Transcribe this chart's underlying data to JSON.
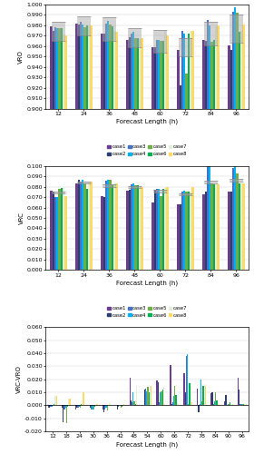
{
  "forecast_lengths_top": [
    12,
    24,
    36,
    48,
    60,
    72,
    84,
    96
  ],
  "forecast_lengths_bottom": [
    12,
    18,
    24,
    30,
    36,
    42,
    48,
    54,
    60,
    66,
    72,
    78,
    84,
    90,
    96
  ],
  "case_colors": [
    "#6a3d8f",
    "#2c3e6b",
    "#4472c4",
    "#00b0f0",
    "#70ad47",
    "#00b050",
    "#e2efda",
    "#ffd966"
  ],
  "case_labels": [
    "case1",
    "case2",
    "case3",
    "case4",
    "case5",
    "case6",
    "case7",
    "case8"
  ],
  "vro_data": [
    [
      0.979,
      0.982,
      0.972,
      0.966,
      0.959,
      0.956,
      0.966,
      0.961
    ],
    [
      0.975,
      0.981,
      0.972,
      0.969,
      0.959,
      0.922,
      0.965,
      0.956
    ],
    [
      0.978,
      0.983,
      0.982,
      0.972,
      0.966,
      0.975,
      0.985,
      0.993
    ],
    [
      0.977,
      0.981,
      0.984,
      0.974,
      0.966,
      0.972,
      0.98,
      0.997
    ],
    [
      0.977,
      0.978,
      0.981,
      0.968,
      0.965,
      0.934,
      0.964,
      0.992
    ],
    [
      0.977,
      0.98,
      0.979,
      0.968,
      0.965,
      0.972,
      0.966,
      0.974
    ],
    [
      0.971,
      0.979,
      0.975,
      0.967,
      0.975,
      0.975,
      0.979,
      0.975
    ],
    [
      0.97,
      0.98,
      0.974,
      0.968,
      0.97,
      0.975,
      0.98,
      0.981
    ]
  ],
  "vro_ci_lo": [
    0.01,
    0.01,
    0.012,
    0.01,
    0.012,
    0.01,
    0.012,
    0.015
  ],
  "vro_ci_hi": [
    0.008,
    0.008,
    0.01,
    0.008,
    0.01,
    0.008,
    0.01,
    0.012
  ],
  "vrc_data": [
    [
      0.076,
      0.083,
      0.071,
      0.076,
      0.065,
      0.063,
      0.073,
      0.075
    ],
    [
      0.075,
      0.087,
      0.07,
      0.077,
      0.077,
      0.063,
      0.075,
      0.075
    ],
    [
      0.07,
      0.085,
      0.086,
      0.082,
      0.078,
      0.075,
      0.1,
      0.098
    ],
    [
      0.07,
      0.087,
      0.087,
      0.083,
      0.078,
      0.076,
      0.1,
      0.1
    ],
    [
      0.078,
      0.083,
      0.087,
      0.081,
      0.071,
      0.075,
      0.083,
      0.093
    ],
    [
      0.079,
      0.078,
      0.082,
      0.081,
      0.078,
      0.075,
      0.082,
      0.083
    ],
    [
      0.079,
      0.083,
      0.083,
      0.08,
      0.079,
      0.075,
      0.082,
      0.083
    ],
    [
      0.071,
      0.085,
      0.083,
      0.08,
      0.08,
      0.08,
      0.082,
      0.083
    ]
  ],
  "vrc_ci_lo": [
    0.01,
    0.01,
    0.012,
    0.01,
    0.012,
    0.01,
    0.012,
    0.015
  ],
  "vrc_ci_hi": [
    0.008,
    0.008,
    0.01,
    0.008,
    0.01,
    0.008,
    0.01,
    0.012
  ],
  "diff_data": [
    [
      -0.002,
      -0.002,
      -0.003,
      0.0,
      -0.003,
      0.0,
      0.021,
      0.0,
      0.019,
      0.031,
      0.025,
      0.013,
      0.009,
      0.003,
      0.021
    ],
    [
      -0.002,
      -0.013,
      -0.002,
      -0.002,
      -0.005,
      -0.003,
      0.004,
      0.012,
      0.018,
      0.001,
      0.01,
      -0.005,
      0.01,
      0.008,
      0.012
    ],
    [
      -0.001,
      -0.003,
      -0.002,
      -0.003,
      -0.003,
      -0.001,
      0.002,
      0.013,
      0.002,
      0.002,
      0.038,
      0.001,
      0.001,
      0.0,
      0.001
    ],
    [
      -0.001,
      -0.002,
      -0.001,
      -0.003,
      -0.002,
      0.0,
      0.01,
      0.011,
      0.01,
      0.007,
      0.039,
      0.02,
      0.003,
      0.001,
      0.001
    ],
    [
      0.0,
      -0.014,
      -0.002,
      -0.003,
      -0.004,
      -0.002,
      0.003,
      0.014,
      0.011,
      0.015,
      0.001,
      0.003,
      0.01,
      0.001,
      0.001
    ],
    [
      0.001,
      -0.001,
      0.001,
      -0.001,
      0.0,
      -0.001,
      0.001,
      0.01,
      0.012,
      0.008,
      0.017,
      0.015,
      0.004,
      0.002,
      0.001
    ],
    [
      0.007,
      0.005,
      0.001,
      0.001,
      0.002,
      0.001,
      0.015,
      0.015,
      0.014,
      0.002,
      0.015,
      0.016,
      0.002,
      0.001,
      0.001
    ],
    [
      0.007,
      0.005,
      0.01,
      0.001,
      0.001,
      0.001,
      0.001,
      0.015,
      0.001,
      0.001,
      0.002,
      0.015,
      0.001,
      0.001,
      0.001
    ]
  ],
  "vro_ylim": [
    0.9,
    1.0
  ],
  "vro_yticks": [
    0.9,
    0.91,
    0.92,
    0.93,
    0.94,
    0.95,
    0.96,
    0.97,
    0.98,
    0.99,
    1.0
  ],
  "vrc_ylim": [
    0.0,
    0.1
  ],
  "vrc_yticks": [
    0.0,
    0.01,
    0.02,
    0.03,
    0.04,
    0.05,
    0.06,
    0.07,
    0.08,
    0.09,
    0.1
  ],
  "diff_ylim": [
    -0.02,
    0.06
  ],
  "diff_yticks": [
    -0.02,
    -0.01,
    0.0,
    0.01,
    0.02,
    0.03,
    0.04,
    0.05,
    0.06
  ],
  "xlabel": "Forecast Length (h)",
  "ylabel_top": "VRO",
  "ylabel_mid": "VRC",
  "ylabel_bot": "VRC-VRO",
  "tick_fontsize": 4.5,
  "label_fontsize": 5,
  "legend_fontsize": 3.8
}
